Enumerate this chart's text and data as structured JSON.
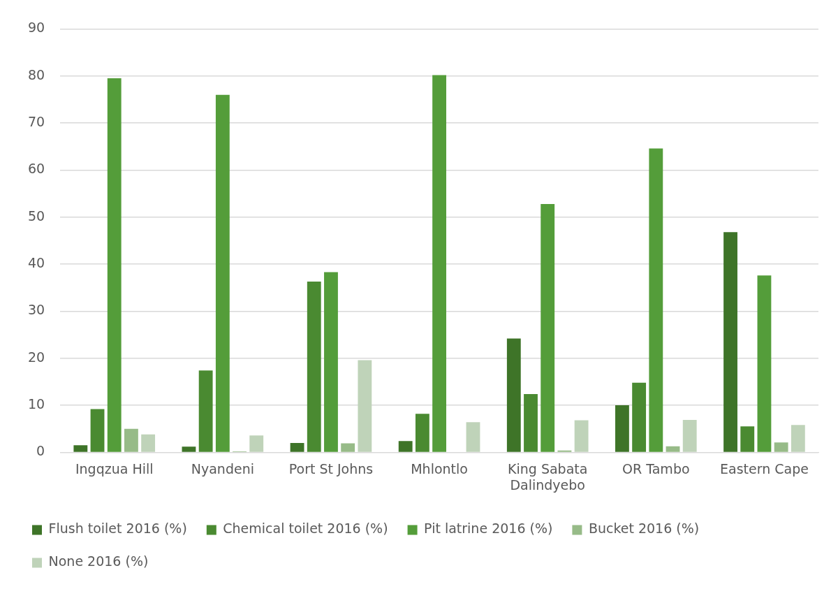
{
  "chart_data": {
    "type": "bar",
    "categories": [
      "Ingqzua Hill",
      "Nyandeni",
      "Port St Johns",
      "Mhlontlo",
      "King Sabata Dalindyebo",
      "OR Tambo",
      "Eastern Cape"
    ],
    "series": [
      {
        "name": "Flush toilet 2016 (%)",
        "color": "#3e7428",
        "values": [
          1.5,
          1.2,
          2.0,
          2.4,
          24.2,
          10.0,
          46.8
        ]
      },
      {
        "name": "Chemical toilet 2016 (%)",
        "color": "#4a8a31",
        "values": [
          9.2,
          17.4,
          36.3,
          8.2,
          12.4,
          14.8,
          5.5
        ]
      },
      {
        "name": "Pit latrine 2016 (%)",
        "color": "#549d3a",
        "values": [
          79.5,
          76.0,
          38.3,
          80.2,
          52.8,
          64.6,
          37.6
        ]
      },
      {
        "name": "Bucket 2016 (%)",
        "color": "#97bb88",
        "values": [
          5.0,
          0.2,
          1.9,
          null,
          0.4,
          1.3,
          2.1
        ]
      },
      {
        "name": "None 2016 (%)",
        "color": "#bfd3b9",
        "values": [
          3.8,
          3.6,
          19.6,
          6.4,
          6.8,
          6.9,
          5.8
        ]
      }
    ],
    "ylim": [
      0,
      90
    ],
    "yticks": [
      0,
      10,
      20,
      30,
      40,
      50,
      60,
      70,
      80,
      90
    ],
    "grid": "y",
    "legend": "bottom"
  }
}
